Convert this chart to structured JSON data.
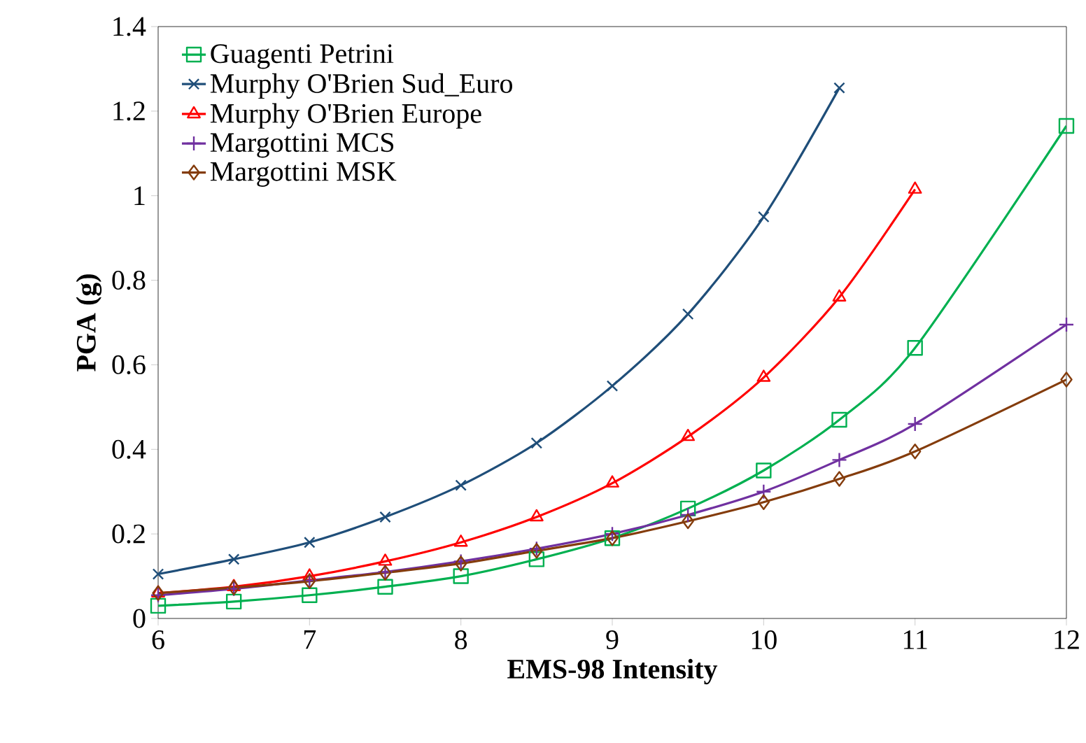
{
  "chart_data": {
    "type": "line",
    "xlabel": "EMS-98 Intensity",
    "ylabel": "PGA (g)",
    "x": [
      6,
      6.5,
      7,
      7.5,
      8,
      8.5,
      9,
      9.5,
      10,
      10.5,
      11,
      12
    ],
    "series": [
      {
        "name": "Guagenti Petrini",
        "color": "#00b050",
        "marker": "square",
        "values": [
          0.03,
          0.04,
          0.055,
          0.075,
          0.1,
          0.14,
          0.19,
          0.26,
          0.35,
          0.47,
          0.64,
          1.165
        ]
      },
      {
        "name": "Murphy O'Brien Sud_Euro",
        "color": "#1f4e79",
        "marker": "cross",
        "values": [
          0.105,
          0.14,
          0.18,
          0.24,
          0.315,
          0.415,
          0.55,
          0.72,
          0.95,
          1.255,
          null,
          null
        ]
      },
      {
        "name": "Murphy O'Brien Europe",
        "color": "#ff0000",
        "marker": "triangle",
        "values": [
          0.06,
          0.075,
          0.1,
          0.135,
          0.18,
          0.24,
          0.32,
          0.43,
          0.57,
          0.76,
          1.015,
          null
        ]
      },
      {
        "name": "Margottini MCS",
        "color": "#7030a0",
        "marker": "plus",
        "values": [
          0.055,
          0.07,
          0.09,
          0.11,
          0.135,
          0.165,
          0.2,
          0.245,
          0.3,
          0.375,
          0.46,
          0.695
        ]
      },
      {
        "name": "Margottini MSK",
        "color": "#843c0c",
        "marker": "diamond",
        "values": [
          0.06,
          0.073,
          0.088,
          0.108,
          0.13,
          0.16,
          0.19,
          0.23,
          0.275,
          0.33,
          0.395,
          0.565
        ]
      }
    ],
    "xlim": [
      6,
      12
    ],
    "xticks": [
      6,
      7,
      8,
      9,
      10,
      11,
      12
    ],
    "ylim": [
      0,
      1.4
    ],
    "yticks": [
      0,
      0.2,
      0.4,
      0.6,
      0.8,
      1,
      1.2,
      1.4
    ],
    "grid": false,
    "legend": "top left",
    "line_style": "solid"
  }
}
